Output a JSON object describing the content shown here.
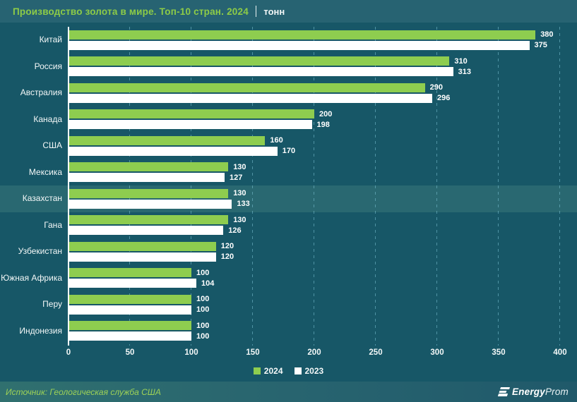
{
  "header": {
    "title": "Производство золота в мире. Топ-10 стран. 2024",
    "unit": "тонн"
  },
  "chart_data": {
    "type": "bar",
    "orientation": "horizontal",
    "title": "Производство золота в мире. Топ-10 стран. 2024",
    "unit_label": "тонн",
    "categories": [
      "Китай",
      "Россия",
      "Австралия",
      "Канада",
      "США",
      "Мексика",
      "Казахстан",
      "Гана",
      "Узбекистан",
      "Южная Африка",
      "Перу",
      "Индонезия"
    ],
    "series": [
      {
        "name": "2024",
        "color": "#8ecd4f",
        "values": [
          380,
          310,
          290,
          200,
          160,
          130,
          130,
          130,
          120,
          100,
          100,
          100
        ]
      },
      {
        "name": "2023",
        "color": "#ffffff",
        "values": [
          375,
          313,
          296,
          198,
          170,
          127,
          133,
          126,
          120,
          104,
          100,
          100
        ]
      }
    ],
    "xlim": [
      0,
      400
    ],
    "xticks": [
      0,
      50,
      100,
      150,
      200,
      250,
      300,
      350,
      400
    ],
    "grid": "dashed-vertical",
    "legend_position": "bottom-center",
    "highlighted_category": "Казахстан"
  },
  "legend": {
    "items": [
      {
        "label": "2024",
        "color": "#8ecd4f"
      },
      {
        "label": "2023",
        "color": "#ffffff"
      }
    ]
  },
  "footer": {
    "source": "Источник: Геологическая служба США",
    "logo_bold": "Energy",
    "logo_light": "Prom"
  },
  "colors": {
    "header_bg": "#276372",
    "body_bg": "#175767",
    "title_green": "#8dcb47",
    "bar_2024": "#8ecd4f",
    "bar_2023": "#ffffff",
    "source_green": "#9ed257"
  }
}
